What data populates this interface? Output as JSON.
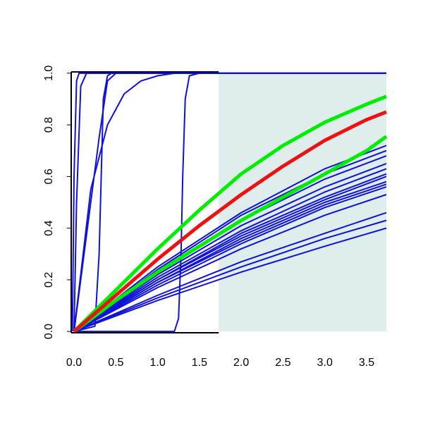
{
  "chart_data": {
    "type": "line",
    "xlim": [
      -0.034,
      3.736
    ],
    "ylim": [
      -0.005,
      1.005
    ],
    "xticks": [
      {
        "value": 0,
        "label": "0.0"
      },
      {
        "value": 0.5,
        "label": "0.5"
      },
      {
        "value": 1,
        "label": "1.0"
      },
      {
        "value": 1.5,
        "label": "1.5"
      },
      {
        "value": 2,
        "label": "2.0"
      },
      {
        "value": 2.5,
        "label": "2.5"
      },
      {
        "value": 3,
        "label": "3.0"
      },
      {
        "value": 3.5,
        "label": "3.5"
      }
    ],
    "yticks": [
      {
        "value": 0,
        "label": "0.0"
      },
      {
        "value": 0.2,
        "label": "0.2"
      },
      {
        "value": 0.4,
        "label": "0.4"
      },
      {
        "value": 0.6,
        "label": "0.6"
      },
      {
        "value": 0.8,
        "label": "0.8"
      },
      {
        "value": 1,
        "label": "1.0"
      }
    ],
    "shaded_region": {
      "x": [
        1.73,
        3.736
      ],
      "color": "#dfeded"
    },
    "series": [
      {
        "color": "#1010dd",
        "width": 2,
        "x": [
          -0.02,
          0,
          0.03,
          0.06,
          3.736
        ],
        "values": [
          0,
          0.6,
          0.97,
          1,
          1
        ]
      },
      {
        "color": "#1010dd",
        "width": 2,
        "x": [
          0,
          0.03,
          0.08,
          0.15,
          3.736
        ],
        "values": [
          0,
          0.5,
          0.95,
          1,
          1
        ]
      },
      {
        "color": "#1010dd",
        "width": 2,
        "x": [
          0,
          0.1,
          0.2,
          0.3,
          0.4,
          0.5,
          3.736
        ],
        "values": [
          0,
          0.25,
          0.5,
          0.75,
          0.97,
          1,
          1
        ]
      },
      {
        "color": "#1010dd",
        "width": 2,
        "x": [
          0,
          0.25,
          0.3,
          0.35,
          0.4,
          0.45,
          3.736
        ],
        "values": [
          0,
          0.02,
          0.3,
          0.9,
          0.99,
          1,
          1
        ]
      },
      {
        "color": "#1010dd",
        "width": 2,
        "x": [
          0,
          0.2,
          0.4,
          0.6,
          0.8,
          1.0,
          1.2,
          3.736
        ],
        "values": [
          0,
          0.55,
          0.8,
          0.92,
          0.97,
          0.99,
          1,
          1
        ]
      },
      {
        "color": "#1010dd",
        "width": 2,
        "x": [
          0,
          1.2,
          1.25,
          1.28,
          1.3,
          1.33,
          1.38,
          1.5,
          3.736
        ],
        "values": [
          0,
          0,
          0.05,
          0.3,
          0.6,
          0.9,
          0.99,
          1,
          1
        ]
      },
      {
        "color": "#1010dd",
        "width": 2,
        "x": [
          0,
          1,
          2,
          3,
          3.736
        ],
        "values": [
          0,
          0.25,
          0.46,
          0.63,
          0.72
        ]
      },
      {
        "color": "#1010dd",
        "width": 2,
        "x": [
          0,
          1,
          2,
          3,
          3.736
        ],
        "values": [
          0,
          0.24,
          0.45,
          0.61,
          0.7
        ]
      },
      {
        "color": "#1010dd",
        "width": 2,
        "x": [
          0,
          1,
          2,
          3,
          3.736
        ],
        "values": [
          0,
          0.23,
          0.43,
          0.59,
          0.68
        ]
      },
      {
        "color": "#1010dd",
        "width": 2,
        "x": [
          0,
          1,
          2,
          3,
          3.736
        ],
        "values": [
          0,
          0.22,
          0.41,
          0.56,
          0.65
        ]
      },
      {
        "color": "#1010dd",
        "width": 2,
        "x": [
          0,
          1,
          2,
          3,
          3.736
        ],
        "values": [
          0,
          0.21,
          0.39,
          0.54,
          0.63
        ]
      },
      {
        "color": "#1010dd",
        "width": 2,
        "x": [
          0,
          1,
          2,
          3,
          3.736
        ],
        "values": [
          0,
          0.2,
          0.38,
          0.52,
          0.61
        ]
      },
      {
        "color": "#1010dd",
        "width": 2,
        "x": [
          0,
          1,
          2,
          3,
          3.736
        ],
        "values": [
          0,
          0.2,
          0.37,
          0.51,
          0.6
        ]
      },
      {
        "color": "#1010dd",
        "width": 2,
        "x": [
          0,
          1,
          2,
          3,
          3.736
        ],
        "values": [
          0,
          0.19,
          0.36,
          0.5,
          0.58
        ]
      },
      {
        "color": "#1010dd",
        "width": 2,
        "x": [
          0,
          1,
          2,
          3,
          3.736
        ],
        "values": [
          0,
          0.19,
          0.35,
          0.49,
          0.57
        ]
      },
      {
        "color": "#1010dd",
        "width": 2,
        "x": [
          0,
          1,
          2,
          3,
          3.736
        ],
        "values": [
          0,
          0.18,
          0.34,
          0.48,
          0.56
        ]
      },
      {
        "color": "#1010dd",
        "width": 2,
        "x": [
          0,
          1,
          2,
          3,
          3.736
        ],
        "values": [
          0,
          0.17,
          0.32,
          0.45,
          0.53
        ]
      },
      {
        "color": "#1010dd",
        "width": 2,
        "x": [
          0,
          1,
          2,
          3,
          3.736
        ],
        "values": [
          0,
          0.14,
          0.27,
          0.38,
          0.46
        ]
      },
      {
        "color": "#1010dd",
        "width": 2,
        "x": [
          0,
          1,
          2,
          3,
          3.736
        ],
        "values": [
          0,
          0.13,
          0.25,
          0.36,
          0.43
        ]
      },
      {
        "color": "#1010dd",
        "width": 2,
        "x": [
          0,
          1,
          2,
          3,
          3.736
        ],
        "values": [
          0,
          0.12,
          0.23,
          0.33,
          0.4
        ]
      },
      {
        "color": "#00ee00",
        "width": 5,
        "x": [
          0,
          0.5,
          1,
          1.5,
          2,
          2.5,
          3,
          3.5,
          3.736
        ],
        "values": [
          0,
          0.12,
          0.23,
          0.33,
          0.43,
          0.52,
          0.61,
          0.7,
          0.755
        ]
      },
      {
        "color": "#00ee00",
        "width": 5,
        "x": [
          0,
          0.5,
          1,
          1.5,
          2,
          2.5,
          3,
          3.5,
          3.736
        ],
        "values": [
          0,
          0.16,
          0.32,
          0.47,
          0.61,
          0.72,
          0.81,
          0.88,
          0.91
        ]
      },
      {
        "color": "#ee1111",
        "width": 5,
        "x": [
          0,
          0.5,
          1,
          1.5,
          2,
          2.5,
          3,
          3.5,
          3.736
        ],
        "values": [
          0,
          0.14,
          0.28,
          0.41,
          0.53,
          0.64,
          0.74,
          0.82,
          0.85
        ]
      }
    ]
  }
}
